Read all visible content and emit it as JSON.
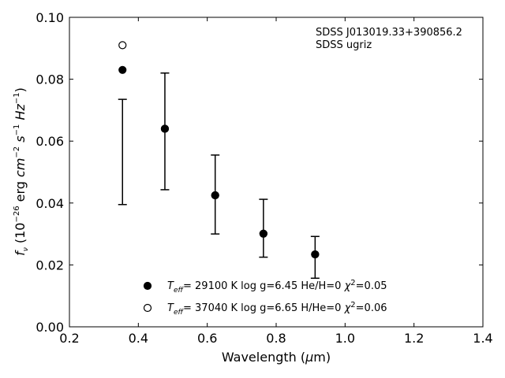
{
  "chart_data": {
    "type": "scatter",
    "xlabel": "Wavelength",
    "xlabel_unit": "μm",
    "ylabel": "f_ν (10^-26 erg cm^-2 s^-1 Hz^-1)",
    "xlim": [
      0.2,
      1.4
    ],
    "ylim": [
      0.0,
      0.1
    ],
    "x_ticks": [
      "0.2",
      "0.4",
      "0.6",
      "0.8",
      "1.0",
      "1.2",
      "1.4"
    ],
    "y_ticks": [
      "0.00",
      "0.02",
      "0.04",
      "0.06",
      "0.08",
      "0.10"
    ],
    "grid": false,
    "legend_position": "bottom-center",
    "annotations": [
      "SDSS J013019.33+390856.2",
      "SDSS ugriz"
    ],
    "observed": {
      "x": [
        0.354,
        0.477,
        0.623,
        0.763,
        0.913
      ],
      "yerr_low": [
        0.0395,
        0.0443,
        0.03,
        0.0225,
        0.0157
      ],
      "yerr_high": [
        0.0735,
        0.082,
        0.0555,
        0.0412,
        0.0292
      ]
    },
    "series": [
      {
        "name": "T_eff= 29100 K  log g=6.45  He/H=0  χ²=0.05",
        "marker": "filled-circle",
        "x": [
          0.354,
          0.477,
          0.623,
          0.763,
          0.913
        ],
        "y": [
          0.083,
          0.064,
          0.0425,
          0.0301,
          0.0234
        ]
      },
      {
        "name": "T_eff= 37040 K  log g=6.65  H/He=0  χ²=0.06",
        "marker": "open-circle",
        "x": [
          0.354,
          0.477,
          0.623,
          0.763,
          0.913
        ],
        "y": [
          0.091,
          0.064,
          0.0425,
          0.0301,
          0.0234
        ]
      }
    ],
    "colors": {
      "marker": "#000000",
      "errorbar": "#000000",
      "axes": "#000000"
    }
  }
}
